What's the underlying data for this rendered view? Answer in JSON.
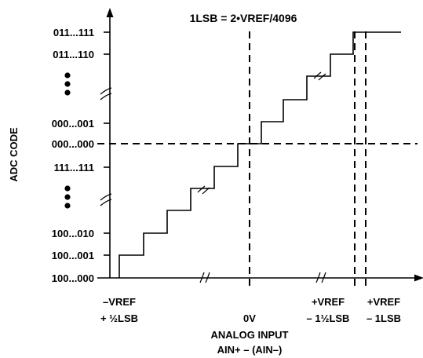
{
  "title": "1LSB = 2•VREF/4096",
  "y_axis_label": "ADC CODE",
  "x_axis_label": [
    "ANALOG INPUT",
    "AIN+ – (AIN–)"
  ],
  "y_codes": [
    "011...111",
    "011...110",
    "000...001",
    "000...000",
    "111...111",
    "100...010",
    "100...001",
    "100...000"
  ],
  "x_markers": {
    "neg": [
      "–VREF",
      "+ ½LSB"
    ],
    "zero": "0V",
    "pos1": [
      "+VREF",
      "– 1½LSB"
    ],
    "pos2": [
      "+VREF",
      "– 1LSB"
    ]
  },
  "colors": {
    "line": "#000000",
    "background": "#ffffff"
  }
}
